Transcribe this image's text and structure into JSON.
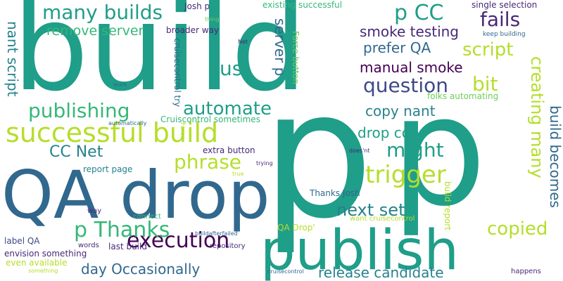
{
  "palette": {
    "teal": "#1f9e89",
    "green": "#35b779",
    "lime": "#b5de2b",
    "yellowgreen": "#6ece58",
    "purple": "#482878",
    "indigo": "#3e4989",
    "blue": "#31688e",
    "darkpurple": "#440154",
    "cyan": "#26828e"
  },
  "words": {
    "build": "build",
    "p_big": "p",
    "p_big2": "p",
    "qa_drop": "QA drop",
    "publish": "publish",
    "successful_build": "successful build",
    "many_builds": "many builds",
    "p_cc": "p CC",
    "fails": "fails",
    "remove_server": "remove server",
    "smoke_testing": "smoke testing",
    "script": "script",
    "prefer_qa": "prefer QA",
    "us": "us",
    "manual_smoke": "manual smoke",
    "question": "question",
    "bit": "bit",
    "publishing": "publishing",
    "automate": "automate",
    "copy_nant": "copy nant",
    "cc_net": "CC Net",
    "might": "might",
    "drop_copy": "drop copy",
    "phrase": "phrase",
    "trigger": "trigger",
    "execution": "execution",
    "p_thanks": "p Thanks",
    "next_set": "next set",
    "copied": "copied",
    "day_occasionally": "day Occasionally",
    "release_candidate": "release candidate",
    "creating_many": "creating many",
    "build_becomes": "build becomes",
    "nant_script": "nant script",
    "cruisecontrol_try": "cruisecontrol try",
    "server_p": "server p",
    "force_button": "Force button",
    "build_report": "build report",
    "josh_p": "Josh p",
    "existing_successful": "existing successful",
    "single_selection": "single selection",
    "keep_building": "keep building",
    "broader_way": "broader way",
    "thing": "thing",
    "net": "Net",
    "work": "work",
    "folks_automating": "folks automating",
    "cruisecontrol_sometimes": "Cruiscontrol sometimes",
    "automatically": "automatically",
    "force": "Force",
    "extra_button": "extra button",
    "doesnt": "does'nt",
    "trying": "trying",
    "report_page": "report page",
    "true": "true",
    "thanks_josh": "Thanks Josh",
    "way": "way",
    "connect": "connect",
    "label_qa": "label QA",
    "qa_drop_quote": "QA Drop'",
    "want_cruisecontrol": "want cruisecontrol",
    "buildafterfailed": "buildafterfailed",
    "envision_something": "envision something",
    "words": "words",
    "last_build": "last build",
    "repository": "repository",
    "even_available": "even available",
    "something": "something",
    "cruisecontrol": "cruisecontrol",
    "happens": "happens"
  }
}
